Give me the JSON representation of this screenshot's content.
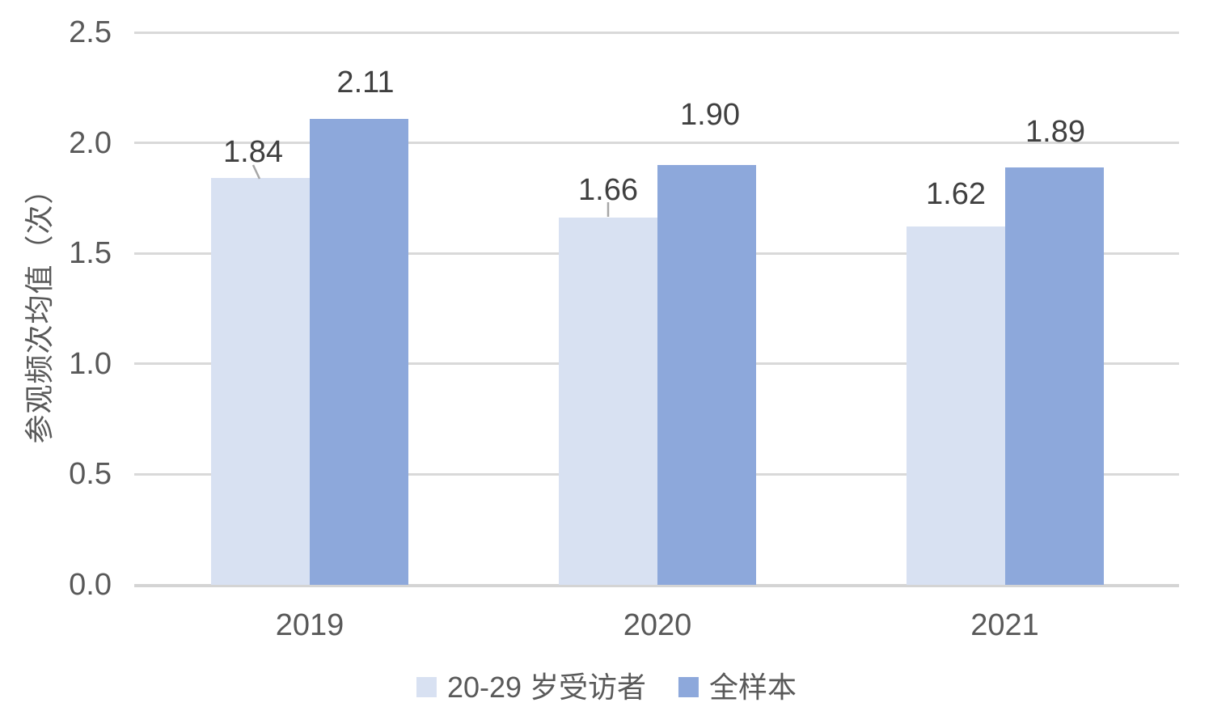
{
  "chart_data": {
    "type": "bar",
    "categories": [
      "2019",
      "2020",
      "2021"
    ],
    "series": [
      {
        "name": "20-29 岁受访者",
        "color": "#d8e1f2",
        "values": [
          1.84,
          1.66,
          1.62
        ],
        "labels": [
          "1.84",
          "1.66",
          "1.62"
        ]
      },
      {
        "name": "全样本",
        "color": "#8da8db",
        "values": [
          2.11,
          1.9,
          1.89
        ],
        "labels": [
          "2.11",
          "1.90",
          "1.89"
        ]
      }
    ],
    "title": "",
    "xlabel": "",
    "ylabel": "参观频次均值（次）",
    "ylim": [
      0,
      2.5
    ],
    "yticks": [
      "0.0",
      "0.5",
      "1.0",
      "1.5",
      "2.0",
      "2.5"
    ],
    "grid": true,
    "legend_position": "bottom"
  },
  "colors": {
    "gridline": "#d9d9d9",
    "axis_text": "#595959",
    "data_label_text": "#404040",
    "leader_line": "#a6a6a6",
    "background": "#ffffff"
  }
}
